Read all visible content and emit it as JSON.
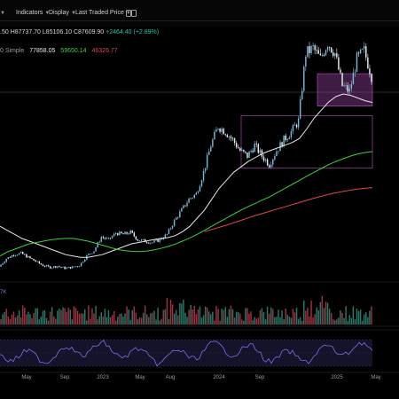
{
  "toolbar": {
    "indicators_label": "Indicators",
    "display_label": "Display",
    "price_type_label": "Last Traded Price",
    "icon": "toggle-icon"
  },
  "ohlc": {
    "open_fragment": ".50",
    "high": "H87737.70",
    "low": "L85106.10",
    "close": "C87609.90",
    "change": "+2464.40 (+2.89%)"
  },
  "ma_legend": {
    "name": "0 Simple",
    "ma1": "77858.05",
    "ma2": "59650.14",
    "ma3": "46326.77",
    "colors": {
      "ma1": "#e8e8e8",
      "ma2": "#3fcf3f",
      "ma3": "#e04848"
    }
  },
  "volume": {
    "label": "7K"
  },
  "colors": {
    "up": "#7ab8d8",
    "down": "#e6eef2",
    "zone": "#8a3d95"
  },
  "chart_data": {
    "type": "line",
    "title": "",
    "x_ticks": [
      "May",
      "Sep",
      "2023",
      "May",
      "Aug",
      "2024",
      "Sep",
      "2025",
      "May"
    ],
    "series": [
      {
        "values": [
          17000,
          20000,
          21500,
          22000,
          20500,
          19000,
          17500,
          16800,
          17200,
          16500,
          16800,
          17500,
          21000,
          23000,
          28000,
          27000,
          29500,
          29000,
          29800,
          27000,
          26500,
          26000,
          27000,
          29000,
          34000,
          38000,
          42000,
          44000,
          52000,
          62000,
          69000,
          67000,
          64000,
          60000,
          58000,
          62000,
          58000,
          55000,
          60000,
          64000,
          67000,
          71000,
          96000,
          98000,
          94000,
          100000,
          96000,
          84000,
          82000,
          94000,
          97000,
          87600
        ]
      },
      {
        "values": [
          32000,
          30500,
          29000,
          27500,
          26500,
          25500,
          24500,
          23500,
          22500,
          21500,
          21000,
          20500,
          20500,
          21000,
          21500,
          22500,
          23500,
          24500,
          25500,
          26000,
          26500,
          27000,
          27500,
          27800,
          28500,
          30000,
          32000,
          35000,
          38000,
          42000,
          46000,
          49000,
          52000,
          54000,
          56000,
          57500,
          59000,
          60000,
          61000,
          62000,
          63000,
          64500,
          68000,
          72000,
          75000,
          78000,
          80000,
          81000,
          80500,
          79500,
          78500,
          77858
        ]
      },
      {
        "values": [
          21000,
          22500,
          23500,
          24500,
          25500,
          26000,
          26500,
          27000,
          27300,
          27500,
          27500,
          27000,
          26500,
          25800,
          25000,
          24200,
          23500,
          23000,
          22700,
          22600,
          22800,
          23200,
          23800,
          24500,
          25400,
          26500,
          27700,
          29000,
          30500,
          32000,
          33500,
          35000,
          36500,
          38000,
          39300,
          40500,
          41800,
          43000,
          44500,
          46000,
          47500,
          49000,
          50500,
          52000,
          53400,
          54800,
          56000,
          57000,
          58000,
          58800,
          59300,
          59650
        ]
      },
      {
        "values": [
          28000,
          28300,
          28600,
          28800,
          28900,
          29000,
          28900,
          28800,
          28600,
          28400,
          28200,
          28000,
          27800,
          27600,
          27400,
          27200,
          27000,
          26900,
          26800,
          26800,
          26900,
          27000,
          27200,
          27500,
          27800,
          28200,
          28700,
          29300,
          30000,
          30800,
          31600,
          32400,
          33300,
          34200,
          35100,
          36000,
          36800,
          37600,
          38400,
          39200,
          40000,
          40800,
          41600,
          42400,
          43100,
          43800,
          44400,
          44900,
          45400,
          45800,
          46100,
          46326
        ]
      }
    ],
    "ranges": [
      {
        "low": 53500,
        "high": 73000
      },
      {
        "low": 76500,
        "high": 88500
      }
    ],
    "horizontal_line": 88000
  }
}
